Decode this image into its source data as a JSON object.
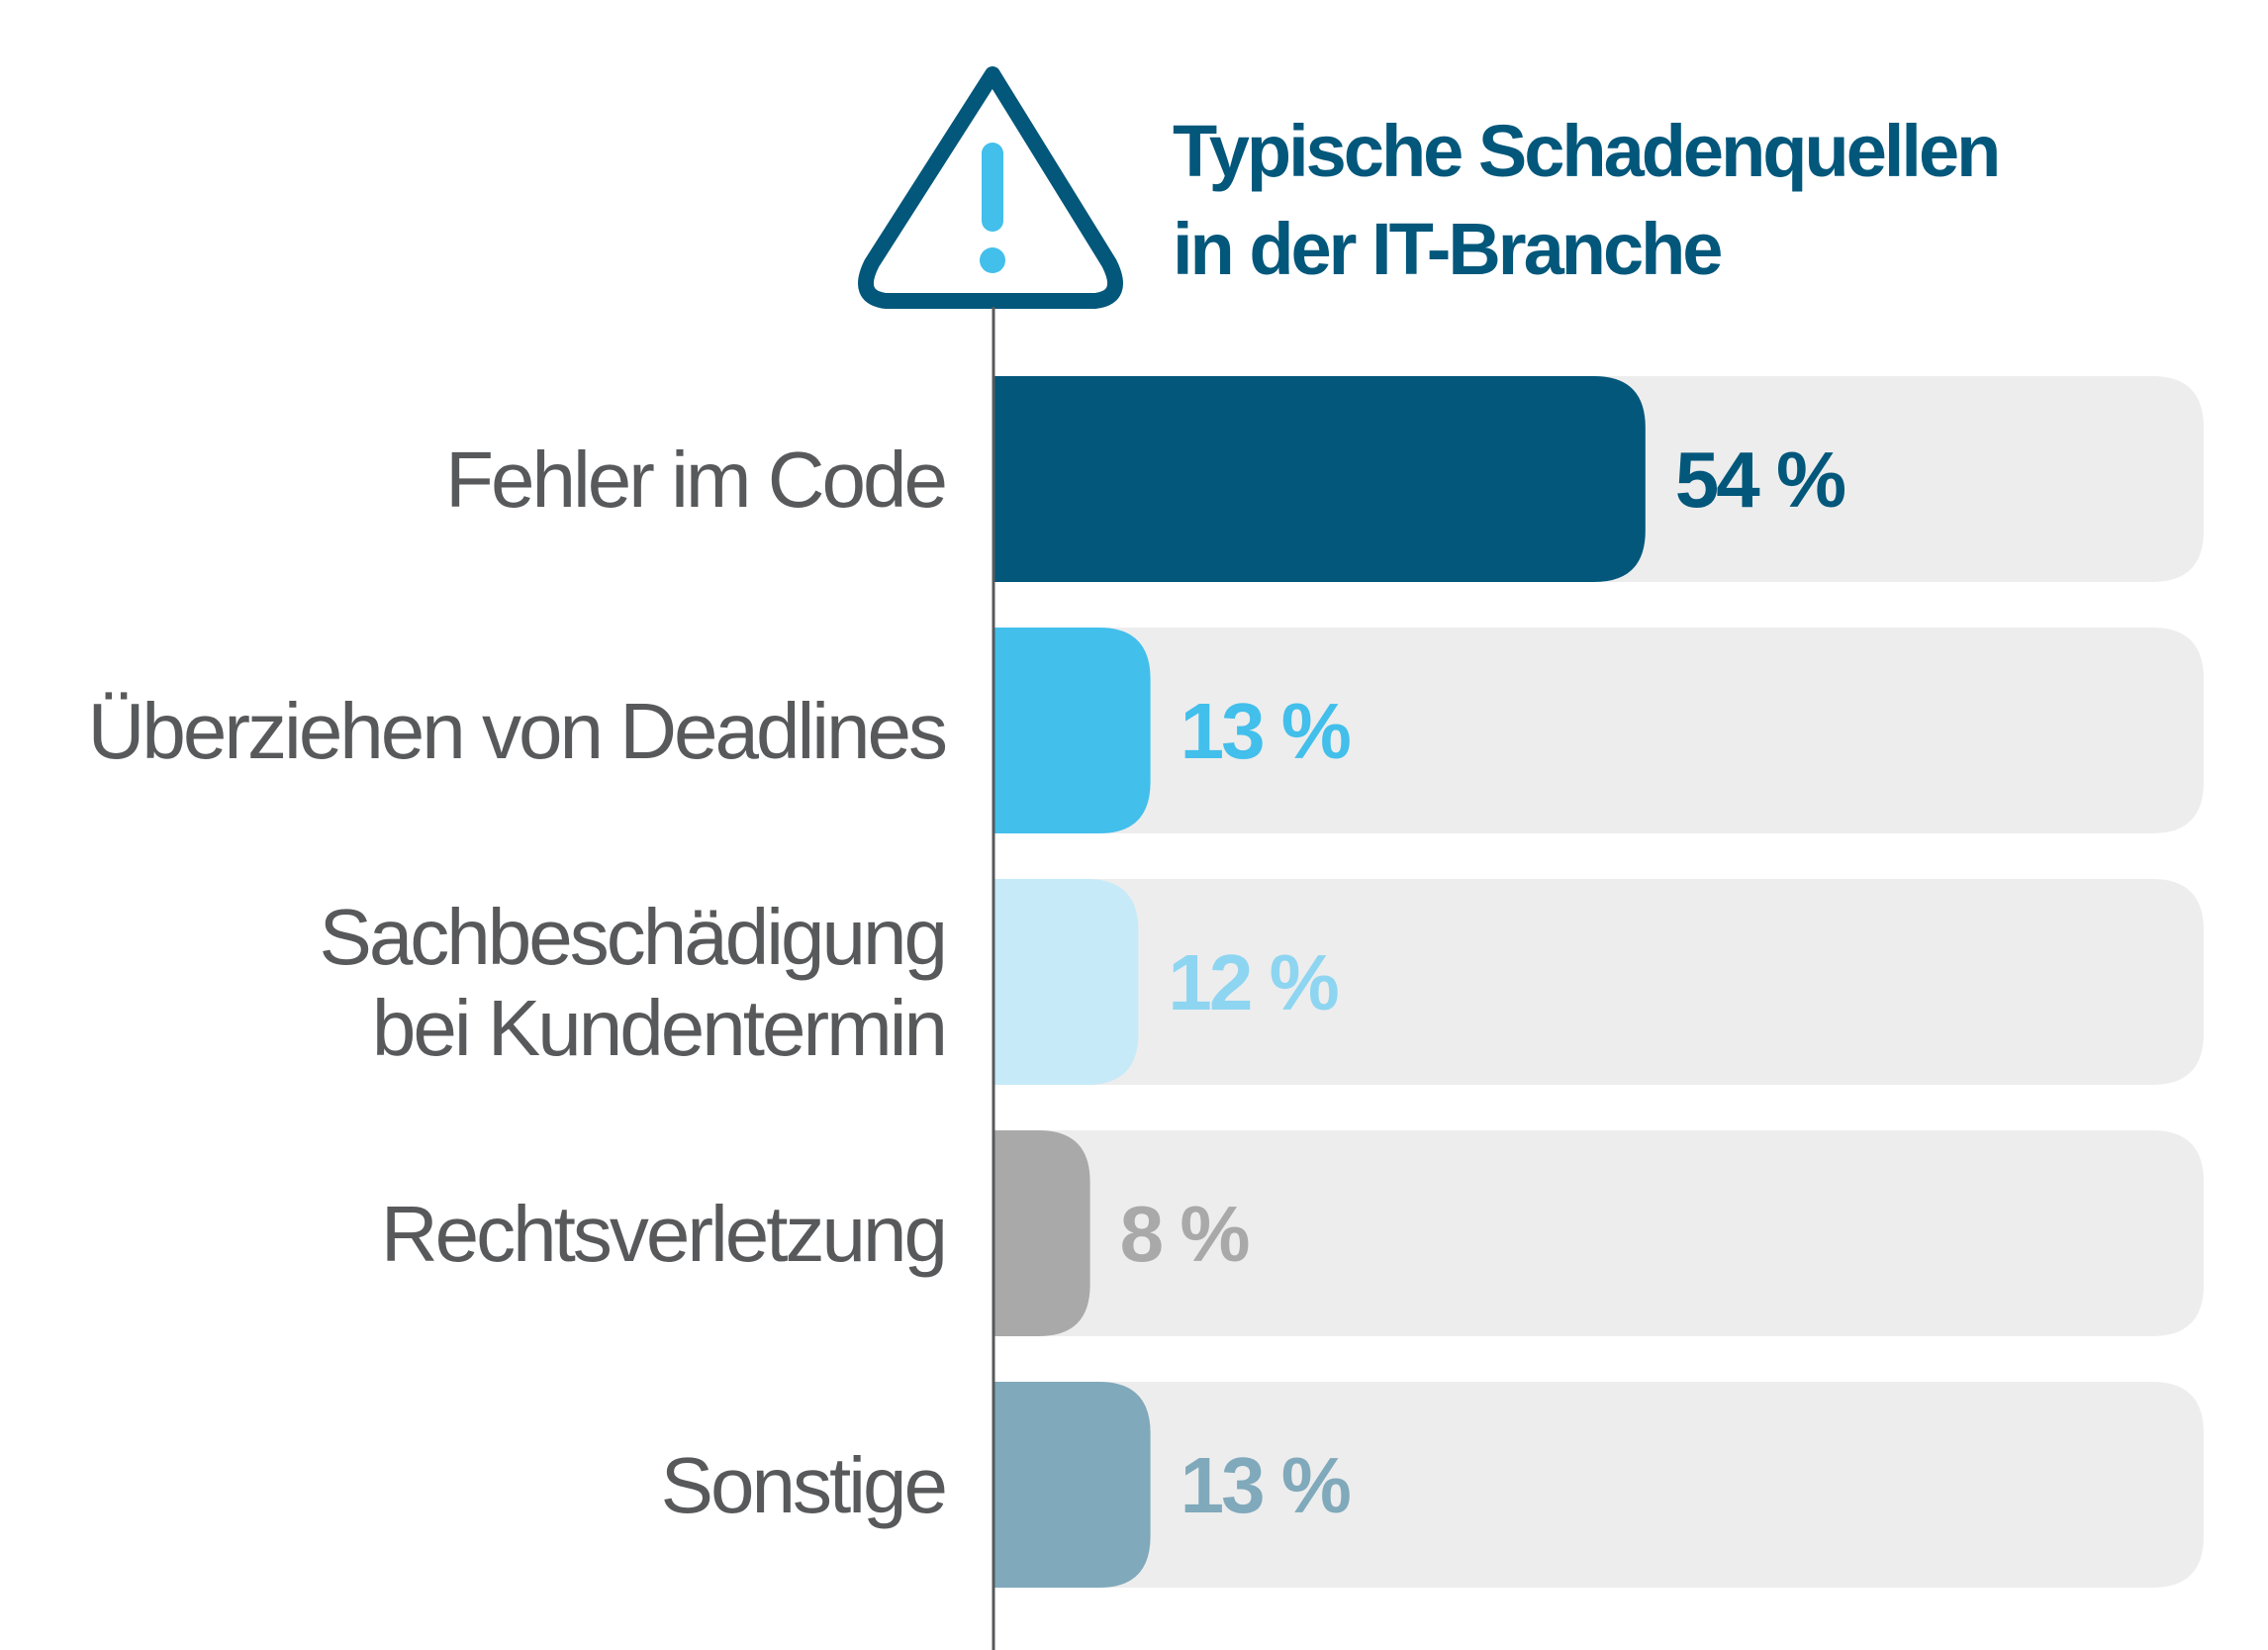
{
  "chart_data": {
    "type": "bar",
    "orientation": "horizontal",
    "title_lines": [
      "Typische Schadenquellen",
      "in der IT-Branche"
    ],
    "categories": [
      [
        "Fehler im Code"
      ],
      [
        "Überziehen von Deadlines"
      ],
      [
        "Sachbeschädigung",
        "bei Kundentermin"
      ],
      [
        "Rechtsverletzung"
      ],
      [
        "Sonstige"
      ]
    ],
    "values": [
      54,
      13,
      12,
      8,
      13
    ],
    "value_labels": [
      "54 %",
      "13 %",
      "12 %",
      "8 %",
      "13 %"
    ],
    "colors": [
      "#02577b",
      "#42bfeb",
      "#c6eaf8",
      "#a9a9a9",
      "#80a9bb"
    ],
    "label_colors": [
      "#02577b",
      "#42bfeb",
      "#8ed5f1",
      "#a9a9a9",
      "#80a9bb"
    ],
    "track_color": "#ededed",
    "xlim": [
      0,
      100
    ],
    "grid": false,
    "legend": "none",
    "icon": "warning-triangle-icon",
    "icon_colors": {
      "outline": "#02577b",
      "mark": "#42bfeb"
    },
    "axis_color": "#58595b"
  }
}
